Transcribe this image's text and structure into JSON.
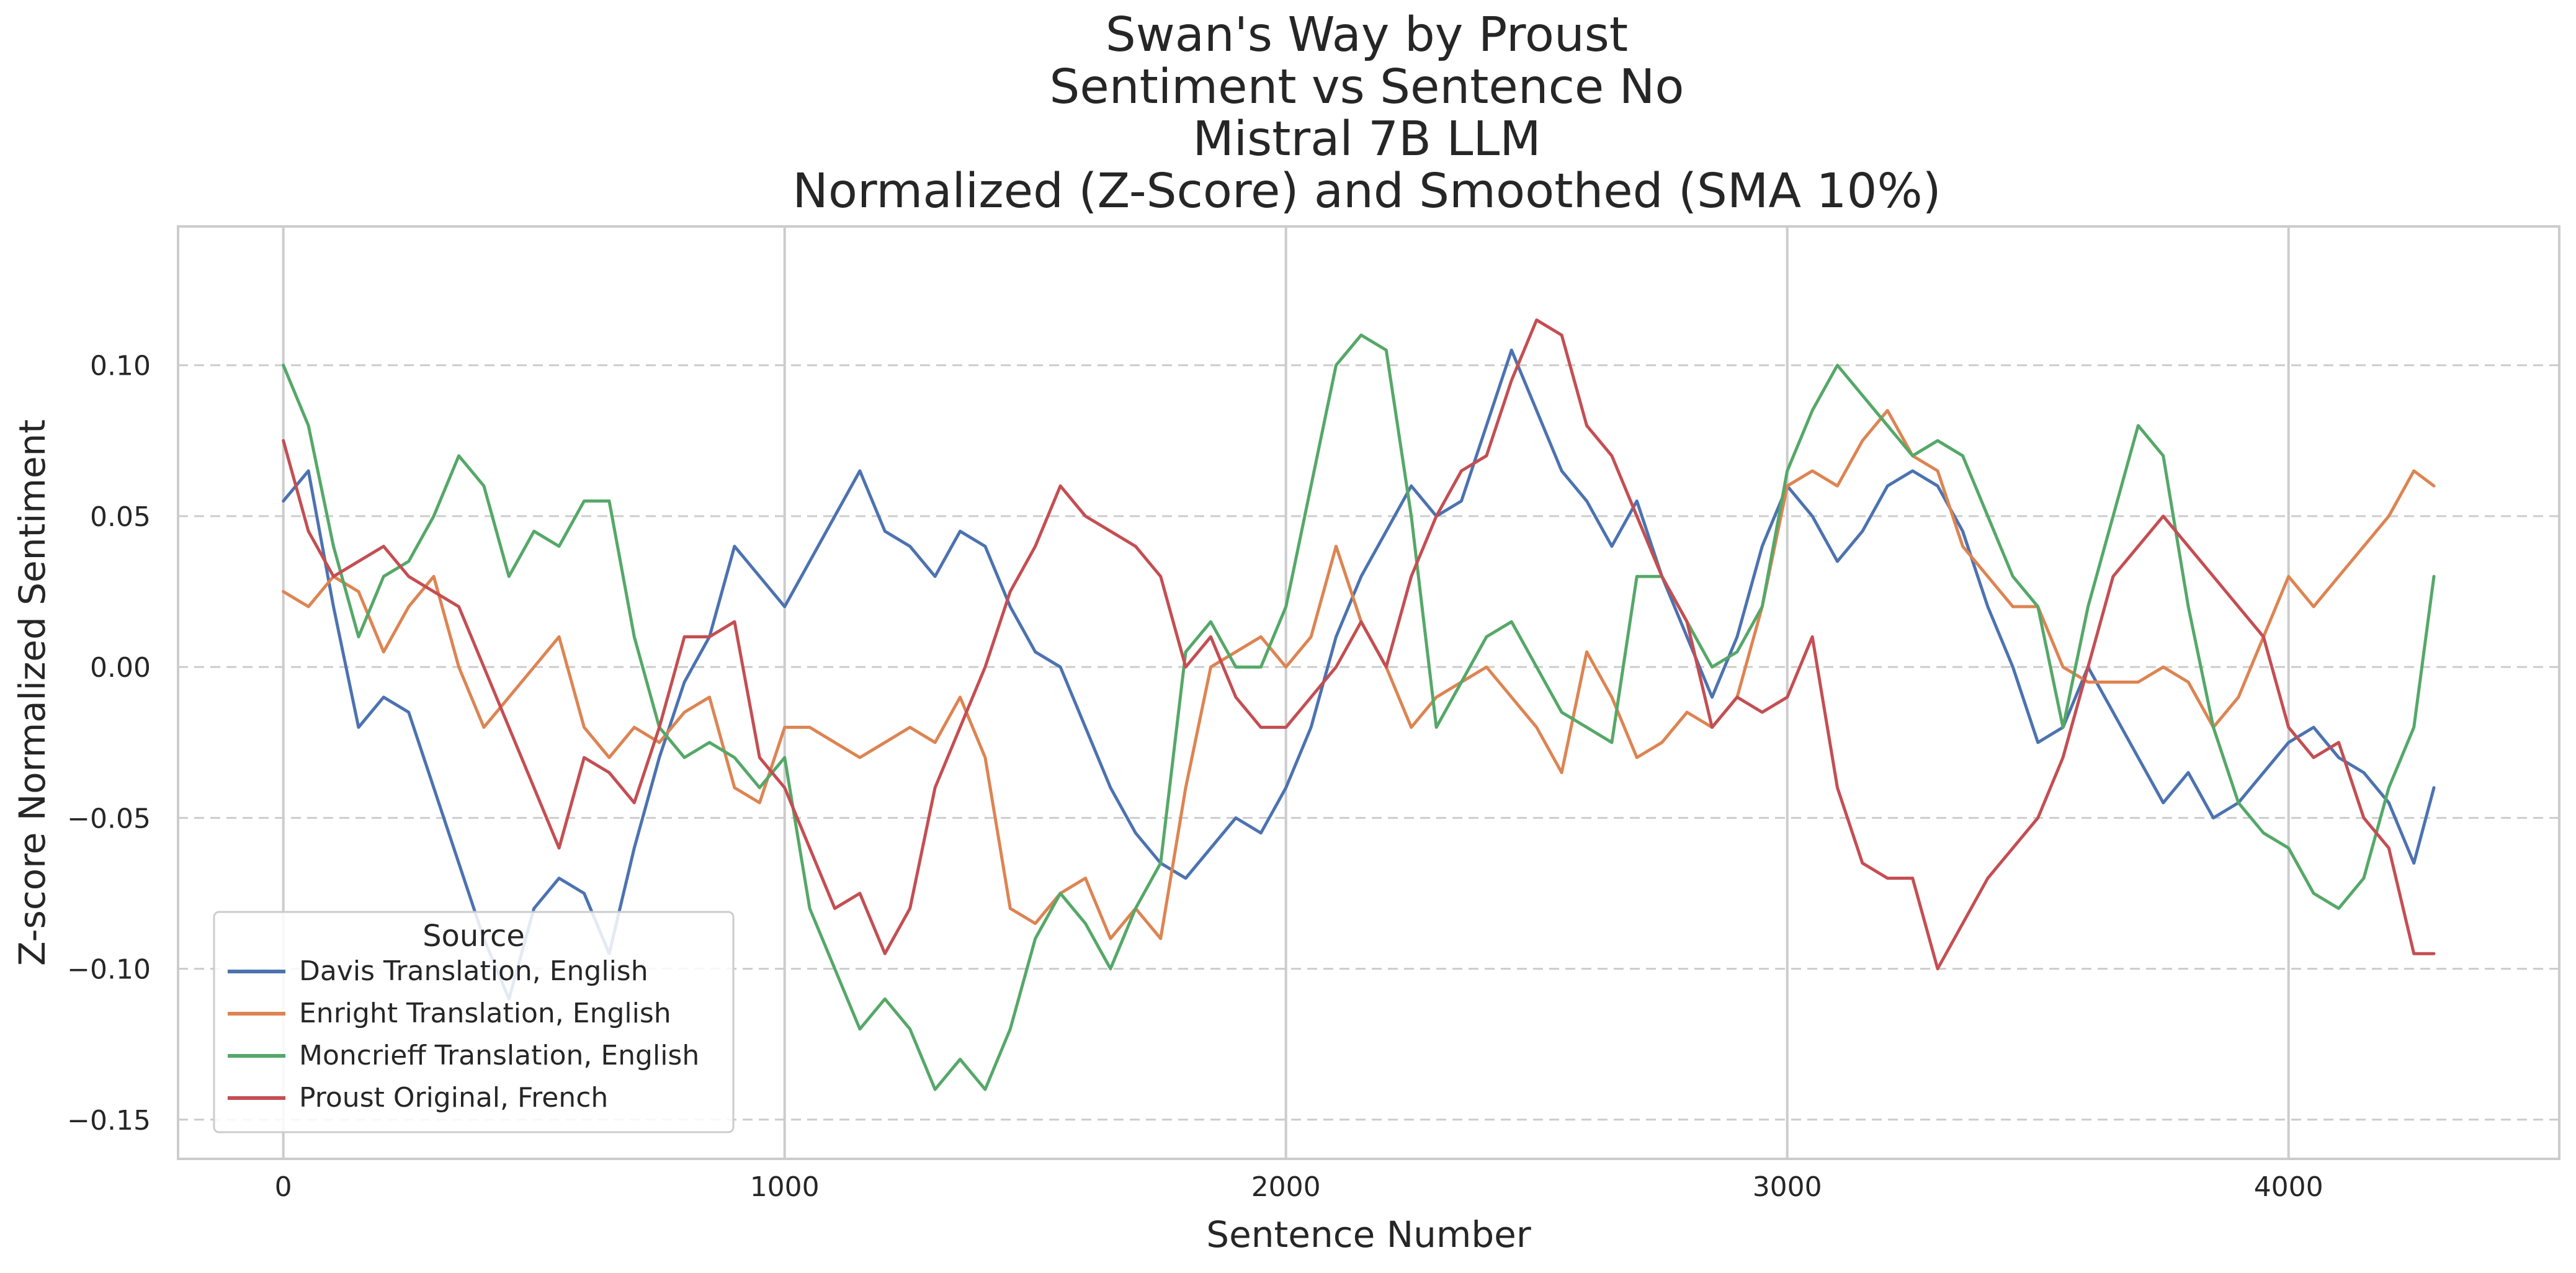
{
  "chart_data": {
    "type": "line",
    "title_lines": [
      "Swan's Way by Proust",
      "Sentiment vs Sentence No",
      "Mistral 7B LLM",
      "Normalized (Z-Score) and Smoothed (SMA 10%)"
    ],
    "xlabel": "Sentence Number",
    "ylabel": "Z-score Normalized Sentiment",
    "xlim": [
      -210,
      4540
    ],
    "ylim": [
      -0.163,
      0.146
    ],
    "xticks": [
      0,
      1000,
      2000,
      3000,
      4000
    ],
    "xtick_labels": [
      "0",
      "1000",
      "2000",
      "3000",
      "4000"
    ],
    "yticks": [
      0.1,
      0.05,
      0.0,
      -0.05,
      -0.1,
      -0.15
    ],
    "ytick_labels": [
      "0.10",
      "0.05",
      "0.00",
      "−0.05",
      "−0.10",
      "−0.15"
    ],
    "grid": {
      "x": "solid",
      "y": "dashed"
    },
    "legend": {
      "title": "Source",
      "placement": "lower-left"
    },
    "series": [
      {
        "name": "Davis Translation, English",
        "color": "#4c72b0",
        "x": [
          0,
          50,
          100,
          150,
          200,
          250,
          300,
          350,
          400,
          450,
          500,
          550,
          600,
          650,
          700,
          750,
          800,
          850,
          900,
          950,
          1000,
          1050,
          1100,
          1150,
          1200,
          1250,
          1300,
          1350,
          1400,
          1450,
          1500,
          1550,
          1600,
          1650,
          1700,
          1750,
          1800,
          1850,
          1900,
          1950,
          2000,
          2050,
          2100,
          2150,
          2200,
          2250,
          2300,
          2350,
          2400,
          2450,
          2500,
          2550,
          2600,
          2650,
          2700,
          2750,
          2800,
          2850,
          2900,
          2950,
          3000,
          3050,
          3100,
          3150,
          3200,
          3250,
          3300,
          3350,
          3400,
          3450,
          3500,
          3550,
          3600,
          3650,
          3700,
          3750,
          3800,
          3850,
          3900,
          3950,
          4000,
          4050,
          4100,
          4150,
          4200,
          4250,
          4290
        ],
        "y": [
          0.055,
          0.065,
          0.02,
          -0.02,
          -0.01,
          -0.015,
          -0.04,
          -0.065,
          -0.09,
          -0.11,
          -0.08,
          -0.07,
          -0.075,
          -0.095,
          -0.06,
          -0.03,
          -0.005,
          0.01,
          0.04,
          0.03,
          0.02,
          0.035,
          0.05,
          0.065,
          0.045,
          0.04,
          0.03,
          0.045,
          0.04,
          0.02,
          0.005,
          0.0,
          -0.02,
          -0.04,
          -0.055,
          -0.065,
          -0.07,
          -0.06,
          -0.05,
          -0.055,
          -0.04,
          -0.02,
          0.01,
          0.03,
          0.045,
          0.06,
          0.05,
          0.055,
          0.08,
          0.105,
          0.085,
          0.065,
          0.055,
          0.04,
          0.055,
          0.03,
          0.01,
          -0.01,
          0.01,
          0.04,
          0.06,
          0.05,
          0.035,
          0.045,
          0.06,
          0.065,
          0.06,
          0.045,
          0.02,
          0.0,
          -0.025,
          -0.02,
          0.0,
          -0.015,
          -0.03,
          -0.045,
          -0.035,
          -0.05,
          -0.045,
          -0.035,
          -0.025,
          -0.02,
          -0.03,
          -0.035,
          -0.045,
          -0.065,
          -0.04
        ]
      },
      {
        "name": "Enright Translation, English",
        "color": "#dd8452",
        "x": [
          0,
          50,
          100,
          150,
          200,
          250,
          300,
          350,
          400,
          450,
          500,
          550,
          600,
          650,
          700,
          750,
          800,
          850,
          900,
          950,
          1000,
          1050,
          1100,
          1150,
          1200,
          1250,
          1300,
          1350,
          1400,
          1450,
          1500,
          1550,
          1600,
          1650,
          1700,
          1750,
          1800,
          1850,
          1900,
          1950,
          2000,
          2050,
          2100,
          2150,
          2200,
          2250,
          2300,
          2350,
          2400,
          2450,
          2500,
          2550,
          2600,
          2650,
          2700,
          2750,
          2800,
          2850,
          2900,
          2950,
          3000,
          3050,
          3100,
          3150,
          3200,
          3250,
          3300,
          3350,
          3400,
          3450,
          3500,
          3550,
          3600,
          3650,
          3700,
          3750,
          3800,
          3850,
          3900,
          3950,
          4000,
          4050,
          4100,
          4150,
          4200,
          4250,
          4290
        ],
        "y": [
          0.025,
          0.02,
          0.03,
          0.025,
          0.005,
          0.02,
          0.03,
          0.0,
          -0.02,
          -0.01,
          0.0,
          0.01,
          -0.02,
          -0.03,
          -0.02,
          -0.025,
          -0.015,
          -0.01,
          -0.04,
          -0.045,
          -0.02,
          -0.02,
          -0.025,
          -0.03,
          -0.025,
          -0.02,
          -0.025,
          -0.01,
          -0.03,
          -0.08,
          -0.085,
          -0.075,
          -0.07,
          -0.09,
          -0.08,
          -0.09,
          -0.04,
          0.0,
          0.005,
          0.01,
          0.0,
          0.01,
          0.04,
          0.015,
          0.0,
          -0.02,
          -0.01,
          -0.005,
          0.0,
          -0.01,
          -0.02,
          -0.035,
          0.005,
          -0.01,
          -0.03,
          -0.025,
          -0.015,
          -0.02,
          -0.01,
          0.02,
          0.06,
          0.065,
          0.06,
          0.075,
          0.085,
          0.07,
          0.065,
          0.04,
          0.03,
          0.02,
          0.02,
          0.0,
          -0.005,
          -0.005,
          -0.005,
          0.0,
          -0.005,
          -0.02,
          -0.01,
          0.01,
          0.03,
          0.02,
          0.03,
          0.04,
          0.05,
          0.065,
          0.06
        ]
      },
      {
        "name": "Moncrieff Translation, English",
        "color": "#55a868",
        "x": [
          0,
          50,
          100,
          150,
          200,
          250,
          300,
          350,
          400,
          450,
          500,
          550,
          600,
          650,
          700,
          750,
          800,
          850,
          900,
          950,
          1000,
          1050,
          1100,
          1150,
          1200,
          1250,
          1300,
          1350,
          1400,
          1450,
          1500,
          1550,
          1600,
          1650,
          1700,
          1750,
          1800,
          1850,
          1900,
          1950,
          2000,
          2050,
          2100,
          2150,
          2200,
          2250,
          2300,
          2350,
          2400,
          2450,
          2500,
          2550,
          2600,
          2650,
          2700,
          2750,
          2800,
          2850,
          2900,
          2950,
          3000,
          3050,
          3100,
          3150,
          3200,
          3250,
          3300,
          3350,
          3400,
          3450,
          3500,
          3550,
          3600,
          3650,
          3700,
          3750,
          3800,
          3850,
          3900,
          3950,
          4000,
          4050,
          4100,
          4150,
          4200,
          4250,
          4290
        ],
        "y": [
          0.1,
          0.08,
          0.04,
          0.01,
          0.03,
          0.035,
          0.05,
          0.07,
          0.06,
          0.03,
          0.045,
          0.04,
          0.055,
          0.055,
          0.01,
          -0.02,
          -0.03,
          -0.025,
          -0.03,
          -0.04,
          -0.03,
          -0.08,
          -0.1,
          -0.12,
          -0.11,
          -0.12,
          -0.14,
          -0.13,
          -0.14,
          -0.12,
          -0.09,
          -0.075,
          -0.085,
          -0.1,
          -0.08,
          -0.065,
          0.005,
          0.015,
          0.0,
          0.0,
          0.02,
          0.06,
          0.1,
          0.11,
          0.105,
          0.05,
          -0.02,
          -0.005,
          0.01,
          0.015,
          0.0,
          -0.015,
          -0.02,
          -0.025,
          0.03,
          0.03,
          0.015,
          0.0,
          0.005,
          0.02,
          0.065,
          0.085,
          0.1,
          0.09,
          0.08,
          0.07,
          0.075,
          0.07,
          0.05,
          0.03,
          0.02,
          -0.02,
          0.02,
          0.05,
          0.08,
          0.07,
          0.02,
          -0.02,
          -0.045,
          -0.055,
          -0.06,
          -0.075,
          -0.08,
          -0.07,
          -0.04,
          -0.02,
          0.03
        ]
      },
      {
        "name": "Proust Original, French",
        "color": "#c44e52",
        "x": [
          0,
          50,
          100,
          150,
          200,
          250,
          300,
          350,
          400,
          450,
          500,
          550,
          600,
          650,
          700,
          750,
          800,
          850,
          900,
          950,
          1000,
          1050,
          1100,
          1150,
          1200,
          1250,
          1300,
          1350,
          1400,
          1450,
          1500,
          1550,
          1600,
          1650,
          1700,
          1750,
          1800,
          1850,
          1900,
          1950,
          2000,
          2050,
          2100,
          2150,
          2200,
          2250,
          2300,
          2350,
          2400,
          2450,
          2500,
          2550,
          2600,
          2650,
          2700,
          2750,
          2800,
          2850,
          2900,
          2950,
          3000,
          3050,
          3100,
          3150,
          3200,
          3250,
          3300,
          3350,
          3400,
          3450,
          3500,
          3550,
          3600,
          3650,
          3700,
          3750,
          3800,
          3850,
          3900,
          3950,
          4000,
          4050,
          4100,
          4150,
          4200,
          4250,
          4290
        ],
        "y": [
          0.075,
          0.045,
          0.03,
          0.035,
          0.04,
          0.03,
          0.025,
          0.02,
          0.0,
          -0.02,
          -0.04,
          -0.06,
          -0.03,
          -0.035,
          -0.045,
          -0.02,
          0.01,
          0.01,
          0.015,
          -0.03,
          -0.04,
          -0.06,
          -0.08,
          -0.075,
          -0.095,
          -0.08,
          -0.04,
          -0.02,
          0.0,
          0.025,
          0.04,
          0.06,
          0.05,
          0.045,
          0.04,
          0.03,
          0.0,
          0.01,
          -0.01,
          -0.02,
          -0.02,
          -0.01,
          0.0,
          0.015,
          0.0,
          0.03,
          0.05,
          0.065,
          0.07,
          0.095,
          0.115,
          0.11,
          0.08,
          0.07,
          0.05,
          0.03,
          0.015,
          -0.02,
          -0.01,
          -0.015,
          -0.01,
          0.01,
          -0.04,
          -0.065,
          -0.07,
          -0.07,
          -0.1,
          -0.085,
          -0.07,
          -0.06,
          -0.05,
          -0.03,
          0.0,
          0.03,
          0.04,
          0.05,
          0.04,
          0.03,
          0.02,
          0.01,
          -0.02,
          -0.03,
          -0.025,
          -0.05,
          -0.06,
          -0.095,
          -0.095
        ]
      }
    ]
  }
}
